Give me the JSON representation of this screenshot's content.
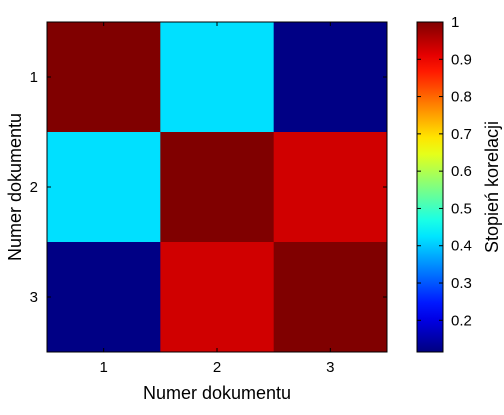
{
  "chart_data": {
    "type": "heatmap",
    "x": [
      1,
      2,
      3
    ],
    "y": [
      1,
      2,
      3
    ],
    "x_ticks": [
      "1",
      "2",
      "3"
    ],
    "y_ticks": [
      "1",
      "2",
      "3"
    ],
    "matrix": [
      [
        1.0,
        0.42,
        0.12
      ],
      [
        0.42,
        1.0,
        0.93
      ],
      [
        0.12,
        0.93,
        1.0
      ]
    ],
    "xlabel": "Numer dokumentu",
    "ylabel": "Numer dokumentu",
    "colorbar": {
      "label": "Stopień korelacji",
      "range": [
        0.115,
        1.0
      ],
      "ticks": [
        0.2,
        0.3,
        0.4,
        0.5,
        0.6,
        0.7,
        0.8,
        0.9,
        1
      ],
      "tick_labels": [
        "0.2",
        "0.3",
        "0.4",
        "0.5",
        "0.6",
        "0.7",
        "0.8",
        "0.9",
        "1"
      ],
      "colormap": "jet"
    },
    "title": ""
  }
}
